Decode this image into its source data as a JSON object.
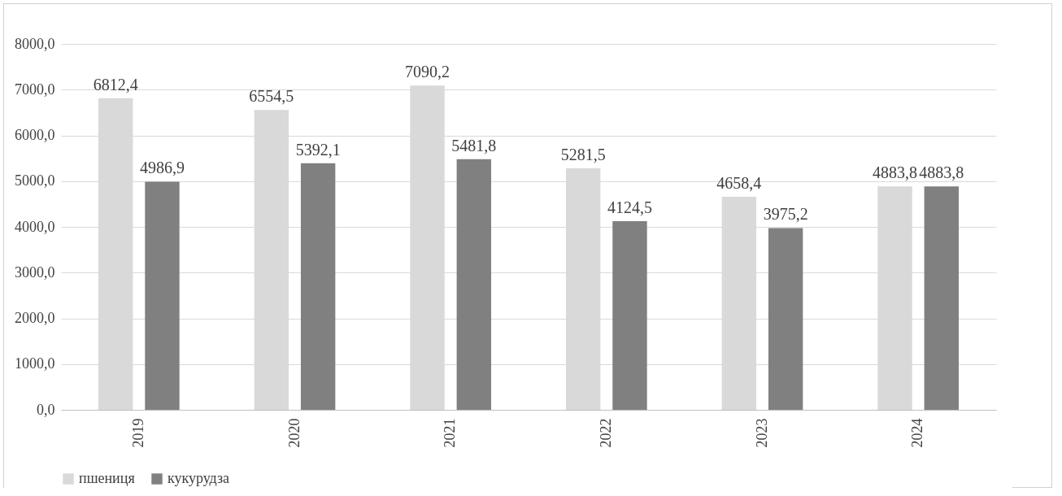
{
  "chart_data": {
    "type": "bar",
    "categories": [
      "2019",
      "2020",
      "2021",
      "2022",
      "2023",
      "2024"
    ],
    "series": [
      {
        "name": "пшениця",
        "color": "#d9d9d9",
        "values": [
          6812.4,
          6554.5,
          7090.2,
          5281.5,
          4658.4,
          4883.8
        ],
        "value_labels": [
          "6812,4",
          "6554,5",
          "7090,2",
          "5281,5",
          "4658,4",
          "4883,8"
        ]
      },
      {
        "name": "кукурудза",
        "color": "#808080",
        "values": [
          4986.9,
          5392.1,
          5481.8,
          4124.5,
          3975.2,
          4883.8
        ],
        "value_labels": [
          "4986,9",
          "5392,1",
          "5481,8",
          "4124,5",
          "3975,2",
          "4883,8"
        ]
      }
    ],
    "ylim": [
      0,
      8000
    ],
    "yticks": [
      {
        "value": 0,
        "label": "0,0"
      },
      {
        "value": 1000,
        "label": "1000,0"
      },
      {
        "value": 2000,
        "label": "2000,0"
      },
      {
        "value": 3000,
        "label": "3000,0"
      },
      {
        "value": 4000,
        "label": "4000,0"
      },
      {
        "value": 5000,
        "label": "5000,0"
      },
      {
        "value": 6000,
        "label": "6000,0"
      },
      {
        "value": 7000,
        "label": "7000,0"
      },
      {
        "value": 8000,
        "label": "8000,0"
      }
    ],
    "grid": "y",
    "legend": "bottom"
  }
}
